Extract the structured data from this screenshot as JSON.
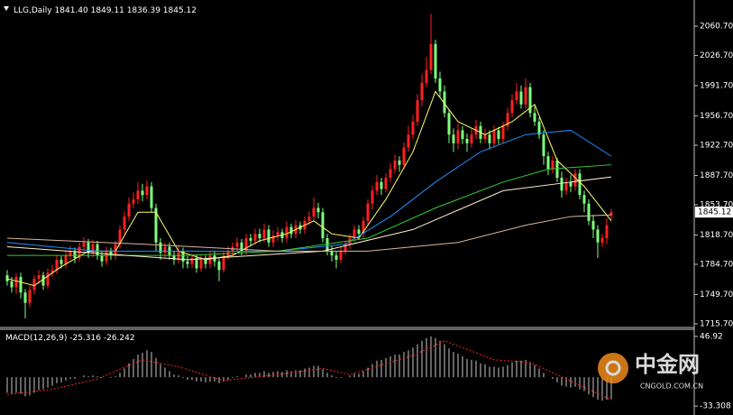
{
  "chart_data": [
    {
      "type": "candlestick",
      "title": "LLG,Daily",
      "ohlc_labels": [
        "1841.40",
        "1849.11",
        "1836.39",
        "1845.12"
      ],
      "open": [
        1772,
        1765,
        1758,
        1770,
        1752,
        1740,
        1755,
        1768,
        1772,
        1760,
        1775,
        1778,
        1790,
        1785,
        1795,
        1800,
        1792,
        1805,
        1810,
        1798,
        1808,
        1795,
        1788,
        1800,
        1795,
        1808,
        1825,
        1840,
        1855,
        1860,
        1870,
        1865,
        1875,
        1850,
        1810,
        1798,
        1805,
        1795,
        1790,
        1800,
        1788,
        1785,
        1792,
        1780,
        1790,
        1785,
        1795,
        1788,
        1778,
        1795,
        1800,
        1805,
        1810,
        1800,
        1815,
        1812,
        1820,
        1815,
        1825,
        1810,
        1818,
        1822,
        1815,
        1828,
        1820,
        1830,
        1825,
        1835,
        1840,
        1850,
        1845,
        1815,
        1800,
        1795,
        1790,
        1800,
        1808,
        1815,
        1825,
        1820,
        1835,
        1855,
        1870,
        1880,
        1872,
        1885,
        1895,
        1905,
        1900,
        1920,
        1935,
        1950,
        1975,
        1995,
        2010,
        2040,
        2000,
        1985,
        1960,
        1935,
        1925,
        1940,
        1930,
        1925,
        1935,
        1945,
        1930,
        1935,
        1925,
        1940,
        1930,
        1945,
        1960,
        1975,
        1985,
        1970,
        1990,
        1960,
        1950,
        1935,
        1910,
        1895,
        1905,
        1885,
        1870,
        1880,
        1875,
        1890,
        1865,
        1855,
        1835,
        1825,
        1810,
        1815,
        1841.4
      ],
      "high": [
        1778,
        1770,
        1774,
        1775,
        1756,
        1760,
        1772,
        1778,
        1776,
        1780,
        1784,
        1795,
        1794,
        1800,
        1806,
        1804,
        1810,
        1816,
        1814,
        1813,
        1812,
        1800,
        1805,
        1804,
        1812,
        1830,
        1846,
        1862,
        1868,
        1880,
        1878,
        1882,
        1880,
        1855,
        1815,
        1810,
        1810,
        1800,
        1805,
        1804,
        1794,
        1797,
        1796,
        1795,
        1795,
        1800,
        1800,
        1792,
        1800,
        1806,
        1810,
        1816,
        1814,
        1820,
        1820,
        1826,
        1826,
        1832,
        1830,
        1824,
        1828,
        1826,
        1834,
        1832,
        1836,
        1834,
        1840,
        1846,
        1862,
        1856,
        1850,
        1820,
        1806,
        1800,
        1805,
        1812,
        1820,
        1830,
        1830,
        1840,
        1860,
        1876,
        1888,
        1885,
        1890,
        1902,
        1912,
        1910,
        1926,
        1945,
        1958,
        1982,
        2005,
        2025,
        2075,
        2045,
        2008,
        1992,
        1965,
        1942,
        1948,
        1945,
        1936,
        1942,
        1952,
        1950,
        1942,
        1940,
        1946,
        1944,
        1950,
        1966,
        1982,
        1995,
        1992,
        2000,
        1995,
        1968,
        1955,
        1940,
        1915,
        1910,
        1908,
        1892,
        1885,
        1888,
        1895,
        1895,
        1870,
        1860,
        1842,
        1830,
        1820,
        1838,
        1849.11
      ],
      "low": [
        1760,
        1752,
        1750,
        1745,
        1722,
        1735,
        1750,
        1762,
        1755,
        1756,
        1770,
        1774,
        1780,
        1780,
        1790,
        1786,
        1788,
        1800,
        1792,
        1793,
        1790,
        1782,
        1784,
        1790,
        1790,
        1803,
        1820,
        1835,
        1850,
        1855,
        1858,
        1860,
        1845,
        1800,
        1790,
        1792,
        1790,
        1784,
        1785,
        1780,
        1780,
        1780,
        1775,
        1776,
        1780,
        1780,
        1782,
        1765,
        1775,
        1790,
        1795,
        1800,
        1795,
        1796,
        1806,
        1808,
        1810,
        1810,
        1805,
        1805,
        1812,
        1810,
        1810,
        1815,
        1815,
        1820,
        1820,
        1830,
        1835,
        1838,
        1810,
        1795,
        1788,
        1780,
        1786,
        1796,
        1802,
        1810,
        1814,
        1815,
        1830,
        1848,
        1865,
        1865,
        1868,
        1880,
        1890,
        1892,
        1895,
        1915,
        1930,
        1945,
        1968,
        1990,
        2005,
        1995,
        1978,
        1955,
        1925,
        1915,
        1918,
        1924,
        1915,
        1920,
        1930,
        1925,
        1925,
        1918,
        1920,
        1924,
        1925,
        1940,
        1955,
        1970,
        1965,
        1965,
        1955,
        1945,
        1930,
        1900,
        1888,
        1890,
        1880,
        1862,
        1865,
        1868,
        1870,
        1860,
        1845,
        1830,
        1815,
        1792,
        1805,
        1808,
        1836.39
      ],
      "close": [
        1765,
        1758,
        1770,
        1752,
        1740,
        1755,
        1768,
        1772,
        1760,
        1775,
        1778,
        1790,
        1785,
        1795,
        1800,
        1792,
        1805,
        1810,
        1798,
        1808,
        1795,
        1788,
        1800,
        1795,
        1808,
        1825,
        1840,
        1855,
        1860,
        1870,
        1865,
        1875,
        1850,
        1810,
        1798,
        1805,
        1795,
        1790,
        1800,
        1788,
        1785,
        1792,
        1780,
        1790,
        1785,
        1795,
        1788,
        1778,
        1795,
        1800,
        1805,
        1810,
        1800,
        1815,
        1812,
        1820,
        1815,
        1825,
        1810,
        1818,
        1822,
        1815,
        1828,
        1820,
        1830,
        1825,
        1835,
        1840,
        1850,
        1845,
        1815,
        1800,
        1795,
        1790,
        1800,
        1808,
        1815,
        1825,
        1820,
        1835,
        1855,
        1870,
        1880,
        1872,
        1885,
        1895,
        1905,
        1900,
        1920,
        1935,
        1950,
        1975,
        1995,
        2010,
        2040,
        2000,
        1985,
        1960,
        1935,
        1925,
        1940,
        1930,
        1925,
        1935,
        1945,
        1930,
        1935,
        1925,
        1940,
        1930,
        1945,
        1960,
        1975,
        1985,
        1970,
        1990,
        1960,
        1950,
        1935,
        1910,
        1895,
        1905,
        1885,
        1870,
        1880,
        1875,
        1890,
        1865,
        1855,
        1835,
        1825,
        1810,
        1815,
        1830,
        1845.12
      ],
      "colors": {
        "up": "#ff2020",
        "down": "#7fff7f"
      },
      "ma": [
        {
          "color": "#ffff66",
          "x": [
            0,
            6,
            12,
            18,
            24,
            29,
            33,
            38,
            44,
            50,
            56,
            62,
            68,
            72,
            78,
            84,
            90,
            95,
            100,
            106,
            112,
            117,
            122,
            128,
            134
          ],
          "values": [
            1768,
            1760,
            1782,
            1800,
            1800,
            1845,
            1845,
            1800,
            1790,
            1795,
            1812,
            1820,
            1835,
            1820,
            1815,
            1860,
            1915,
            1985,
            1950,
            1935,
            1950,
            1970,
            1905,
            1875,
            1835
          ]
        },
        {
          "color": "#1e90ff",
          "x": [
            0,
            20,
            40,
            60,
            75,
            85,
            95,
            105,
            115,
            125,
            134
          ],
          "values": [
            1810,
            1800,
            1800,
            1800,
            1808,
            1840,
            1880,
            1915,
            1935,
            1940,
            1910
          ]
        },
        {
          "color": "#32cd32",
          "x": [
            0,
            20,
            40,
            60,
            80,
            95,
            110,
            120,
            134
          ],
          "values": [
            1795,
            1795,
            1795,
            1800,
            1815,
            1850,
            1880,
            1895,
            1900
          ]
        },
        {
          "color": "#fff0d0",
          "x": [
            0,
            40,
            70,
            90,
            110,
            125,
            134
          ],
          "values": [
            1805,
            1790,
            1800,
            1825,
            1870,
            1880,
            1886
          ]
        },
        {
          "color": "#d8b8a0",
          "x": [
            0,
            30,
            60,
            80,
            100,
            115,
            125,
            134
          ],
          "values": [
            1815,
            1808,
            1800,
            1800,
            1810,
            1830,
            1840,
            1842
          ]
        }
      ],
      "ylim": [
        1712.5,
        2085.8
      ],
      "yticks": [
        {
          "value": 2060.7,
          "label": "2060.70"
        },
        {
          "value": 2026.7,
          "label": "2026.70"
        },
        {
          "value": 1991.7,
          "label": "1991.70"
        },
        {
          "value": 1956.7,
          "label": "1956.70"
        },
        {
          "value": 1922.7,
          "label": "1922.70"
        },
        {
          "value": 1887.7,
          "label": "1887.70"
        },
        {
          "value": 1853.7,
          "label": "1853.70"
        },
        {
          "value": 1818.7,
          "label": "1818.70"
        },
        {
          "value": 1784.7,
          "label": "1784.70"
        },
        {
          "value": 1749.7,
          "label": "1749.70"
        },
        {
          "value": 1715.7,
          "label": "1715.70"
        }
      ]
    },
    {
      "type": "macd",
      "title": "MACD(12,26,9)",
      "color": "#c8c8c8",
      "values": [
        -18,
        -19,
        -18,
        -19,
        -22,
        -21,
        -18,
        -15,
        -14,
        -12,
        -10,
        -7,
        -6,
        -4,
        -2,
        -2,
        0,
        2,
        1,
        2,
        1,
        -1,
        0,
        -1,
        1,
        5,
        10,
        16,
        21,
        26,
        28,
        31,
        29,
        22,
        15,
        11,
        7,
        3,
        2,
        -1,
        -3,
        -3,
        -5,
        -5,
        -6,
        -5,
        -5,
        -7,
        -5,
        -3,
        -1,
        1,
        0,
        3,
        3,
        5,
        5,
        7,
        5,
        6,
        7,
        6,
        8,
        7,
        8,
        8,
        10,
        11,
        13,
        13,
        9,
        5,
        2,
        -1,
        -1,
        0,
        2,
        4,
        4,
        7,
        11,
        15,
        19,
        20,
        22,
        24,
        26,
        26,
        29,
        31,
        34,
        38,
        42,
        45,
        47,
        45,
        42,
        38,
        33,
        29,
        27,
        24,
        21,
        20,
        19,
        16,
        15,
        12,
        12,
        11,
        12,
        14,
        17,
        19,
        19,
        20,
        17,
        14,
        10,
        5,
        0,
        -2,
        -6,
        -10,
        -11,
        -12,
        -11,
        -14,
        -16,
        -20,
        -23,
        -26,
        -27,
        -26,
        -25.316
      ],
      "signal": {
        "color": "#ff2020",
        "x": [
          0,
          10,
          20,
          30,
          38,
          48,
          60,
          70,
          76,
          90,
          97,
          108,
          116,
          124,
          134
        ],
        "values": [
          -20,
          -14,
          -2,
          20,
          12,
          -4,
          3,
          10,
          3,
          25,
          42,
          20,
          17,
          -2,
          -26.242
        ]
      },
      "ylim": [
        -41.5,
        54.1
      ],
      "yticks": [
        46.92,
        -33.308
      ]
    }
  ],
  "watermark": {
    "brand": "中金网",
    "site": "CNGOLD.COM.CN"
  }
}
